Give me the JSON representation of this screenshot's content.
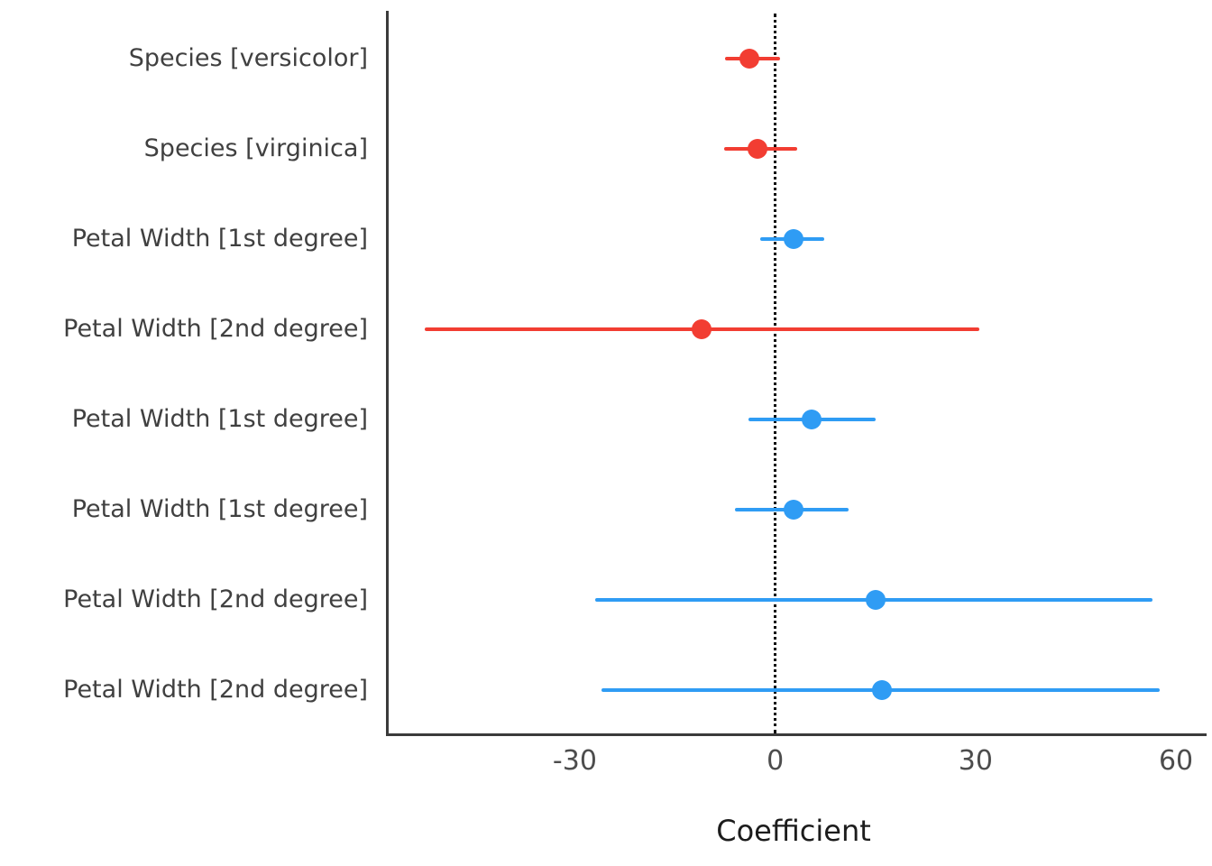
{
  "chart_data": {
    "type": "scatter",
    "subtype": "coefficient-forest-plot",
    "title": "",
    "xlabel": "Coefficient",
    "ylabel": "",
    "xlim": [
      -58,
      63.5
    ],
    "x_ticks": [
      {
        "label": "-30",
        "value": -30
      },
      {
        "label": "0",
        "value": 0
      },
      {
        "label": "30",
        "value": 30
      },
      {
        "label": "60",
        "value": 60
      }
    ],
    "zero_line_x": 0,
    "grid": false,
    "legend": "none",
    "colors": {
      "negative": "#f23d32",
      "positive": "#2f9cf4",
      "axis": "#3b3b3b",
      "label_text": "#404040",
      "tick_text": "#4d4d4d",
      "zero_line": "#0a0a0a"
    },
    "rows": [
      {
        "label": "Species [versicolor]",
        "estimate": -3.8,
        "ci_low": -7.5,
        "ci_high": 0.7,
        "direction": "negative"
      },
      {
        "label": "Species [virginica]",
        "estimate": -2.7,
        "ci_low": -7.6,
        "ci_high": 3.3,
        "direction": "negative"
      },
      {
        "label": "Petal Width [1st degree]",
        "estimate": 2.7,
        "ci_low": -2.3,
        "ci_high": 7.4,
        "direction": "positive"
      },
      {
        "label": "Petal Width [2nd degree]",
        "estimate": -11.0,
        "ci_low": -52.5,
        "ci_high": 30.5,
        "direction": "negative"
      },
      {
        "label": "Petal Width [1st degree]",
        "estimate": 5.5,
        "ci_low": -4.0,
        "ci_high": 15.0,
        "direction": "positive"
      },
      {
        "label": "Petal Width [1st degree]",
        "estimate": 2.8,
        "ci_low": -6.0,
        "ci_high": 11.0,
        "direction": "positive"
      },
      {
        "label": "Petal Width [2nd degree]",
        "estimate": 15.0,
        "ci_low": -27.0,
        "ci_high": 56.5,
        "direction": "positive"
      },
      {
        "label": "Petal Width [2nd degree]",
        "estimate": 16.0,
        "ci_low": -26.0,
        "ci_high": 57.5,
        "direction": "positive"
      }
    ]
  }
}
